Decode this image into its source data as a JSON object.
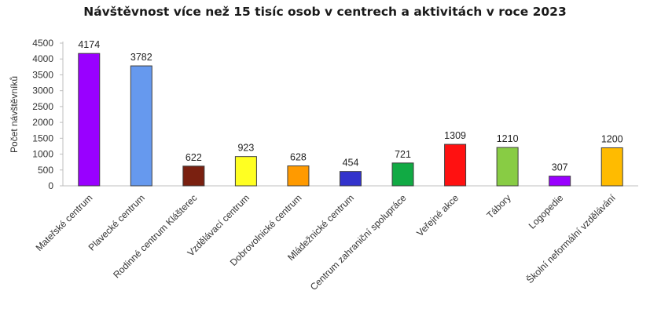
{
  "chart_data": {
    "type": "bar",
    "title": "Návštěvnost více než 15 tisíc osob v centrech a aktivitách v roce 2023",
    "xlabel": "",
    "ylabel": "Počet návštěvníků",
    "ylim": [
      0,
      4500
    ],
    "yticks": [
      0,
      500,
      1000,
      1500,
      2000,
      2500,
      3000,
      3500,
      4000,
      4500
    ],
    "grid": false,
    "legend": "none",
    "categories": [
      "Mateřské centrum",
      "Plavecké centrum",
      "Rodinné centrum Klášterec",
      "Vzdělávací centrum",
      "Dobrovolnické centrum",
      "Mládežnické centrum",
      "Centrum zahraniční spolupráce",
      "Veřejné akce",
      "Tábory",
      "Logopedie",
      "Školní neformální vzdělávání"
    ],
    "values": [
      4174,
      3782,
      622,
      923,
      628,
      454,
      721,
      1309,
      1210,
      307,
      1200
    ],
    "colors": [
      "#9900ff",
      "#6699ee",
      "#7a2010",
      "#ffff22",
      "#ff9a00",
      "#3333cc",
      "#11aa44",
      "#ff1111",
      "#88cc44",
      "#9900ff",
      "#ffbb00"
    ]
  }
}
